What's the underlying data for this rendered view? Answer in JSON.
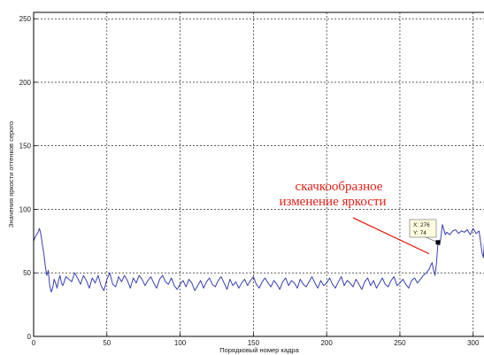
{
  "chart_data": {
    "type": "line",
    "xlabel": "Порядковый номер кадра",
    "ylabel": "Значения яркости оттенков серого",
    "xlim": [
      0,
      308
    ],
    "ylim": [
      0,
      255
    ],
    "xticks": [
      0,
      50,
      100,
      150,
      200,
      250,
      300
    ],
    "yticks": [
      0,
      50,
      100,
      150,
      200,
      250
    ],
    "grid": true,
    "line_color": "#3a3fb0",
    "annotation": {
      "lines": [
        "скачкообразное",
        "изменение яркости"
      ],
      "color": "#e8221b",
      "arrow_to": [
        270,
        65
      ]
    },
    "datatip": {
      "x_text": "X: 276",
      "y_text": "Y: 74",
      "x": 276,
      "y": 74
    },
    "series": [
      {
        "x": [
          0,
          1,
          2,
          3,
          4,
          5,
          6,
          7,
          8,
          9,
          10,
          11,
          12,
          13,
          14,
          15,
          16,
          17,
          18,
          19,
          20,
          22,
          24,
          26,
          28,
          30,
          32,
          34,
          36,
          38,
          40,
          42,
          44,
          46,
          48,
          50,
          52,
          54,
          56,
          58,
          60,
          62,
          64,
          66,
          68,
          70,
          72,
          74,
          76,
          78,
          80,
          82,
          84,
          86,
          88,
          90,
          92,
          94,
          96,
          98,
          100,
          102,
          104,
          106,
          108,
          110,
          112,
          114,
          116,
          118,
          120,
          122,
          124,
          126,
          128,
          130,
          132,
          134,
          136,
          138,
          140,
          142,
          144,
          146,
          148,
          150,
          152,
          154,
          156,
          158,
          160,
          162,
          164,
          166,
          168,
          170,
          172,
          174,
          176,
          178,
          180,
          182,
          184,
          186,
          188,
          190,
          192,
          194,
          196,
          198,
          200,
          202,
          204,
          206,
          208,
          210,
          212,
          214,
          216,
          218,
          220,
          222,
          224,
          226,
          228,
          230,
          232,
          234,
          236,
          238,
          240,
          242,
          244,
          246,
          248,
          250,
          252,
          254,
          256,
          258,
          260,
          262,
          264,
          266,
          268,
          270,
          271,
          272,
          273,
          274,
          275,
          276,
          277,
          278,
          279,
          280,
          281,
          282,
          284,
          286,
          288,
          290,
          292,
          294,
          296,
          298,
          300,
          302,
          304,
          305,
          306,
          307,
          308
        ],
        "y": [
          75,
          78,
          80,
          82,
          85,
          80,
          72,
          65,
          55,
          48,
          52,
          40,
          35,
          38,
          45,
          42,
          38,
          44,
          48,
          42,
          40,
          47,
          45,
          43,
          50,
          46,
          41,
          48,
          44,
          38,
          46,
          42,
          48,
          40,
          36,
          45,
          50,
          41,
          39,
          47,
          43,
          48,
          44,
          38,
          46,
          42,
          48,
          45,
          40,
          44,
          47,
          42,
          38,
          45,
          48,
          43,
          41,
          46,
          40,
          37,
          41,
          44,
          39,
          45,
          42,
          36,
          40,
          44,
          38,
          43,
          46,
          41,
          39,
          44,
          47,
          42,
          37,
          45,
          40,
          43,
          38,
          42,
          45,
          40,
          44,
          47,
          41,
          38,
          43,
          46,
          42,
          39,
          44,
          41,
          37,
          43,
          46,
          40,
          44,
          42,
          38,
          45,
          41,
          39,
          43,
          47,
          42,
          38,
          44,
          40,
          42,
          46,
          41,
          38,
          43,
          47,
          40,
          44,
          42,
          39,
          45,
          41,
          37,
          43,
          46,
          40,
          44,
          38,
          42,
          46,
          41,
          39,
          44,
          47,
          40,
          42,
          45,
          41,
          38,
          44,
          46,
          42,
          45,
          48,
          50,
          53,
          56,
          58,
          52,
          48,
          58,
          74,
          72,
          78,
          88,
          84,
          80,
          82,
          80,
          83,
          84,
          81,
          83,
          82,
          84,
          80,
          85,
          81,
          83,
          75,
          66,
          62,
          80
        ]
      }
    ]
  }
}
